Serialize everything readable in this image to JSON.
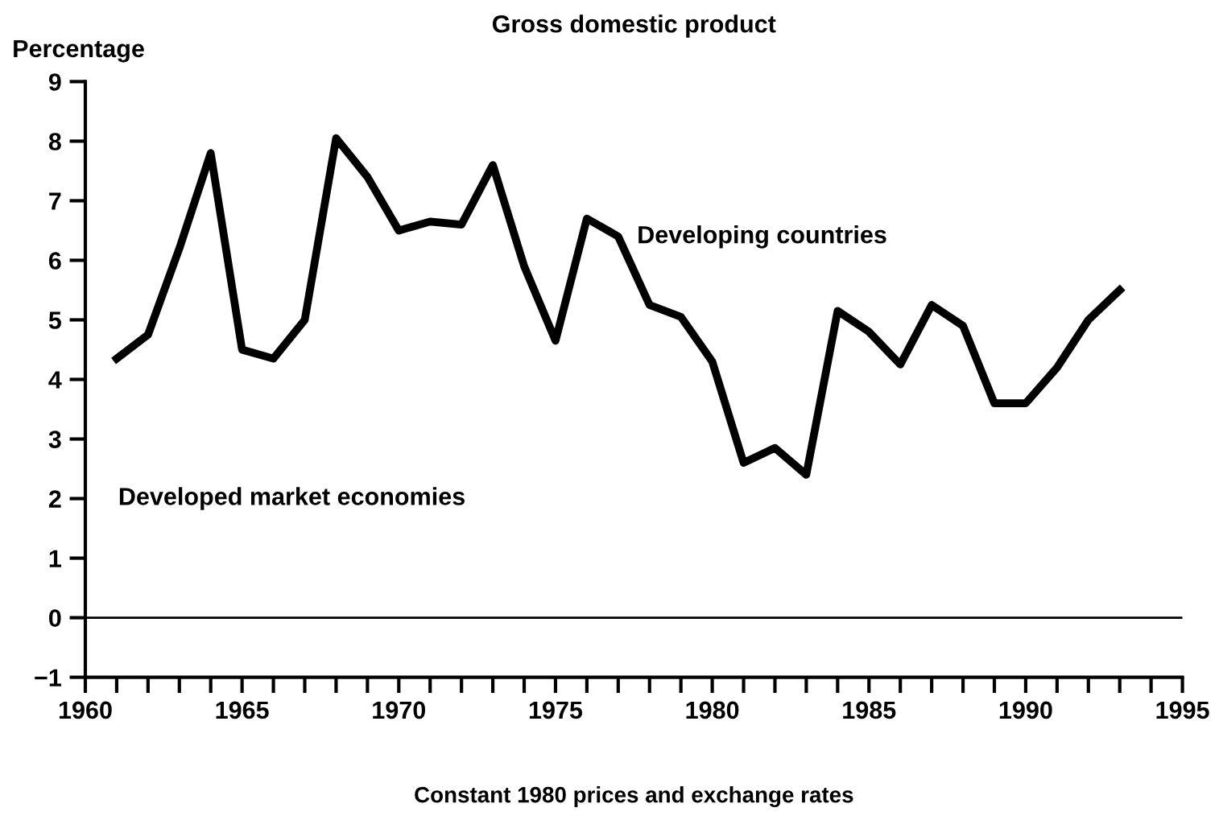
{
  "chart_data": {
    "type": "line",
    "title": "Gross domestic product",
    "ylabel": "Percentage",
    "xlabel": "Constant 1980 prices and exchange rates",
    "x": [
      1961,
      1962,
      1963,
      1964,
      1965,
      1966,
      1967,
      1968,
      1969,
      1970,
      1971,
      1972,
      1973,
      1974,
      1975,
      1976,
      1977,
      1978,
      1979,
      1980,
      1981,
      1982,
      1983,
      1984,
      1985,
      1986,
      1987,
      1988,
      1989,
      1990,
      1991,
      1992,
      1993
    ],
    "series": [
      {
        "name": "Developing countries",
        "color": "#000000",
        "values": [
          4.35,
          4.75,
          6.2,
          7.8,
          4.5,
          4.35,
          5.0,
          8.05,
          7.4,
          6.5,
          6.65,
          6.6,
          7.6,
          5.9,
          4.65,
          6.7,
          6.4,
          5.25,
          5.05,
          4.3,
          2.6,
          2.85,
          2.4,
          5.15,
          4.8,
          4.25,
          5.25,
          4.9,
          3.6,
          3.6,
          4.2,
          5.0,
          5.5
        ]
      }
    ],
    "annotations": [
      "Developed market economies"
    ],
    "ref_lines": [
      {
        "axis": "y",
        "value": 0,
        "color": "#000000"
      }
    ],
    "xlim": [
      1960,
      1995
    ],
    "xticks": [
      1960,
      {
        "value": 1961,
        "label": null
      },
      {
        "value": 1962,
        "label": null
      },
      {
        "value": 1963,
        "label": null
      },
      {
        "value": 1964,
        "label": null
      },
      1965,
      {
        "value": 1966,
        "label": null
      },
      {
        "value": 1967,
        "label": null
      },
      {
        "value": 1968,
        "label": null
      },
      {
        "value": 1969,
        "label": null
      },
      1970,
      {
        "value": 1971,
        "label": null
      },
      {
        "value": 1972,
        "label": null
      },
      {
        "value": 1973,
        "label": null
      },
      {
        "value": 1974,
        "label": null
      },
      1975,
      {
        "value": 1976,
        "label": null
      },
      {
        "value": 1977,
        "label": null
      },
      {
        "value": 1978,
        "label": null
      },
      {
        "value": 1979,
        "label": null
      },
      1980,
      {
        "value": 1981,
        "label": null
      },
      {
        "value": 1982,
        "label": null
      },
      {
        "value": 1983,
        "label": null
      },
      {
        "value": 1984,
        "label": null
      },
      1985,
      {
        "value": 1986,
        "label": null
      },
      {
        "value": 1987,
        "label": null
      },
      {
        "value": 1988,
        "label": null
      },
      {
        "value": 1989,
        "label": null
      },
      1990,
      {
        "value": 1991,
        "label": null
      },
      {
        "value": 1992,
        "label": null
      },
      {
        "value": 1993,
        "label": null
      },
      {
        "value": 1994,
        "label": null
      },
      1995
    ],
    "ylim": [
      -1,
      9
    ],
    "yticks": [
      {
        "value": -1,
        "label": "−1"
      },
      0,
      1,
      2,
      3,
      4,
      5,
      6,
      7,
      8,
      9
    ],
    "grid": false,
    "legend": false,
    "line_style": "solid",
    "marker": "none"
  }
}
